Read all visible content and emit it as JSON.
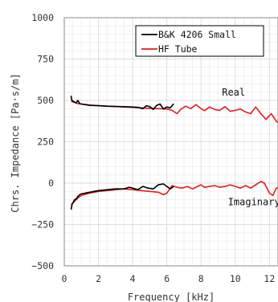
{
  "chart_data": {
    "type": "line",
    "xlabel": "Frequency [kHz]",
    "ylabel": "Chrs. Impedance [Pa·s/m]",
    "xlim": [
      0,
      12.5
    ],
    "ylim": [
      -500,
      1000
    ],
    "xticks": [
      "0",
      "2",
      "4",
      "6",
      "8",
      "10",
      "12"
    ],
    "yticks": [
      "1000",
      "750",
      "500",
      "250",
      "0",
      "−250",
      "−500"
    ],
    "grid": true,
    "legend": {
      "position": "top-right",
      "entries": [
        {
          "name": "B&K 4206 Small",
          "color": "#000000"
        },
        {
          "name": "HF Tube",
          "color": "#e8191e"
        }
      ]
    },
    "annotations": [
      {
        "text": "Real",
        "x": 9.9,
        "y": 528
      },
      {
        "text": "Imaginary",
        "x": 11.1,
        "y": -133
      }
    ],
    "series": [
      {
        "name": "B&K 4206 Small",
        "part": "Real",
        "color": "#000000",
        "x": [
          0.4,
          0.42,
          0.45,
          0.5,
          0.6,
          0.7,
          0.8,
          0.9,
          1.0,
          1.2,
          1.5,
          2.0,
          2.5,
          3.0,
          3.5,
          4.0,
          4.3,
          4.6,
          4.8,
          5.0,
          5.2,
          5.4,
          5.6,
          5.8,
          6.0,
          6.2,
          6.4
        ],
        "y": [
          528,
          510,
          500,
          495,
          490,
          485,
          500,
          480,
          478,
          475,
          470,
          468,
          465,
          463,
          462,
          460,
          458,
          450,
          468,
          462,
          445,
          470,
          478,
          448,
          460,
          455,
          480
        ]
      },
      {
        "name": "HF Tube",
        "part": "Real",
        "color": "#e8191e",
        "x": [
          0.4,
          0.6,
          0.8,
          1.0,
          1.5,
          2.0,
          2.5,
          3.0,
          3.5,
          4.0,
          4.5,
          5.0,
          5.5,
          6.0,
          6.3,
          6.6,
          6.8,
          7.1,
          7.4,
          7.7,
          8.0,
          8.2,
          8.5,
          8.8,
          9.1,
          9.4,
          9.7,
          10.0,
          10.3,
          10.6,
          10.9,
          11.2,
          11.5,
          11.8,
          12.1,
          12.4,
          12.5
        ],
        "y": [
          495,
          488,
          480,
          478,
          472,
          468,
          465,
          463,
          460,
          458,
          455,
          452,
          450,
          448,
          440,
          420,
          445,
          465,
          450,
          475,
          450,
          438,
          460,
          445,
          440,
          462,
          435,
          440,
          448,
          430,
          420,
          460,
          420,
          385,
          420,
          375,
          365
        ]
      },
      {
        "name": "B&K 4206 Small",
        "part": "Imaginary",
        "color": "#000000",
        "x": [
          0.4,
          0.45,
          0.5,
          0.6,
          0.7,
          0.8,
          0.9,
          1.0,
          1.5,
          2.0,
          2.5,
          3.0,
          3.5,
          3.8,
          4.0,
          4.3,
          4.6,
          4.9,
          5.2,
          5.5,
          5.8,
          6.0,
          6.2,
          6.4
        ],
        "y": [
          -160,
          -130,
          -120,
          -100,
          -95,
          -80,
          -70,
          -65,
          -55,
          -45,
          -40,
          -35,
          -35,
          -25,
          -30,
          -40,
          -20,
          -30,
          -35,
          -10,
          -5,
          -20,
          -35,
          -20
        ]
      },
      {
        "name": "HF Tube",
        "part": "Imaginary",
        "color": "#e8191e",
        "x": [
          0.4,
          0.6,
          0.8,
          1.0,
          1.5,
          2.0,
          2.5,
          3.0,
          3.5,
          4.0,
          4.5,
          5.0,
          5.5,
          5.8,
          6.0,
          6.3,
          6.6,
          6.9,
          7.2,
          7.5,
          7.8,
          8.0,
          8.2,
          8.5,
          8.8,
          9.1,
          9.4,
          9.7,
          10.0,
          10.3,
          10.6,
          10.9,
          11.2,
          11.5,
          11.7,
          12.0,
          12.2,
          12.4,
          12.5
        ],
        "y": [
          -130,
          -110,
          -90,
          -75,
          -60,
          -50,
          -45,
          -40,
          -35,
          -40,
          -45,
          -50,
          -55,
          -70,
          -60,
          -15,
          -25,
          -30,
          -20,
          -35,
          -20,
          -10,
          -25,
          -20,
          -15,
          -25,
          -20,
          -10,
          -20,
          -30,
          -15,
          -30,
          -10,
          10,
          0,
          -60,
          -75,
          -30,
          -30
        ]
      }
    ]
  }
}
